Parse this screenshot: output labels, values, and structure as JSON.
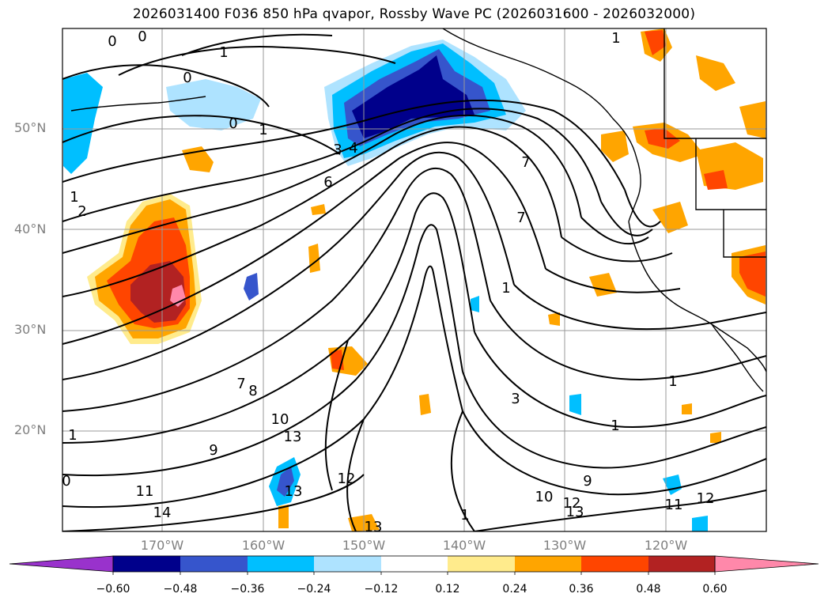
{
  "title": "2026031400 F036 850 hPa qvapor, Rossby Wave PC (2026031600 - 2026032000)",
  "lat_labels": [
    "50°N",
    "40°N",
    "30°N",
    "20°N"
  ],
  "lon_labels": [
    "170°W",
    "160°W",
    "150°W",
    "140°W",
    "130°W",
    "120°W"
  ],
  "colorbar": {
    "tick_labels": [
      "−0.60",
      "−0.48",
      "−0.36",
      "−0.24",
      "−0.12",
      "0.12",
      "0.24",
      "0.36",
      "0.48",
      "0.60"
    ],
    "colors": [
      "#9932cc",
      "#00008b",
      "#3655cc",
      "#00bfff",
      "#aee3ff",
      "#ffffff",
      "#ffeb8c",
      "#ffa500",
      "#ff4500",
      "#b22222",
      "#ff88aa"
    ]
  },
  "contour_labels": [
    "0",
    "0",
    "1",
    "0",
    "0",
    "1",
    "3",
    "4",
    "6",
    "1",
    "2",
    "1",
    "7",
    "7",
    "1",
    "1",
    "1",
    "7",
    "8",
    "10",
    "13",
    "9",
    "11",
    "14",
    "13",
    "12",
    "13",
    "3",
    "1",
    "9",
    "10",
    "12",
    "13",
    "11",
    "12",
    "1",
    "0"
  ],
  "colors": {
    "land": "#000000",
    "grid": "#999999",
    "label": "#7f7f7f"
  }
}
